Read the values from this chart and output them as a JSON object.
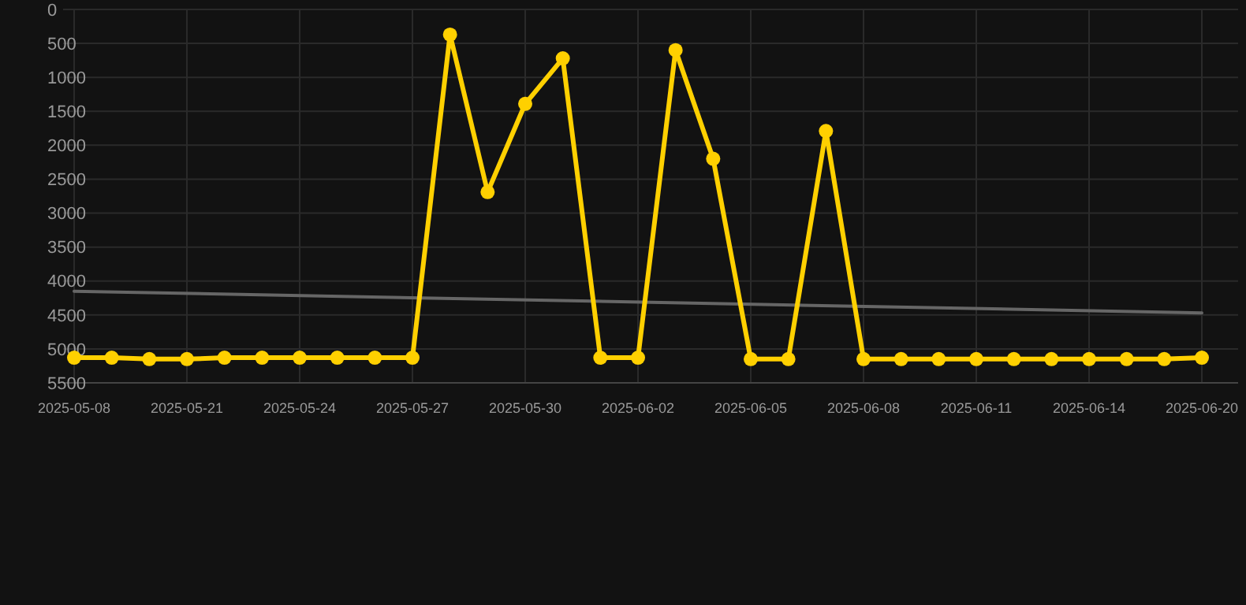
{
  "chart_data": {
    "type": "line",
    "categories": [
      "2025-05-08",
      null,
      null,
      "2025-05-21",
      null,
      null,
      "2025-05-24",
      null,
      null,
      "2025-05-27",
      null,
      null,
      "2025-05-30",
      null,
      null,
      "2025-06-02",
      null,
      null,
      "2025-06-05",
      null,
      null,
      "2025-06-08",
      null,
      null,
      "2025-06-11",
      null,
      null,
      "2025-06-14",
      null,
      null,
      "2025-06-20"
    ],
    "series": [
      {
        "color": "#ffd000",
        "marker": "circle",
        "values": [
          5130,
          5130,
          5150,
          5150,
          5130,
          5130,
          5130,
          5130,
          5130,
          5130,
          370,
          2690,
          1390,
          720,
          5130,
          5130,
          600,
          2200,
          5150,
          5150,
          1790,
          5150,
          5150,
          5150,
          5150,
          5150,
          5150,
          5150,
          5150,
          5150,
          5130
        ]
      },
      {
        "color": "#666666",
        "marker": "none",
        "values": [
          4150,
          null,
          null,
          null,
          null,
          null,
          null,
          null,
          null,
          null,
          null,
          null,
          null,
          null,
          null,
          null,
          null,
          null,
          null,
          null,
          null,
          null,
          null,
          null,
          null,
          null,
          null,
          null,
          null,
          null,
          4470
        ]
      }
    ],
    "ylim": [
      5500,
      0
    ],
    "yticks": [
      0,
      500,
      1000,
      1500,
      2000,
      2500,
      3000,
      3500,
      4000,
      4500,
      5000,
      5500
    ],
    "grid": true
  }
}
